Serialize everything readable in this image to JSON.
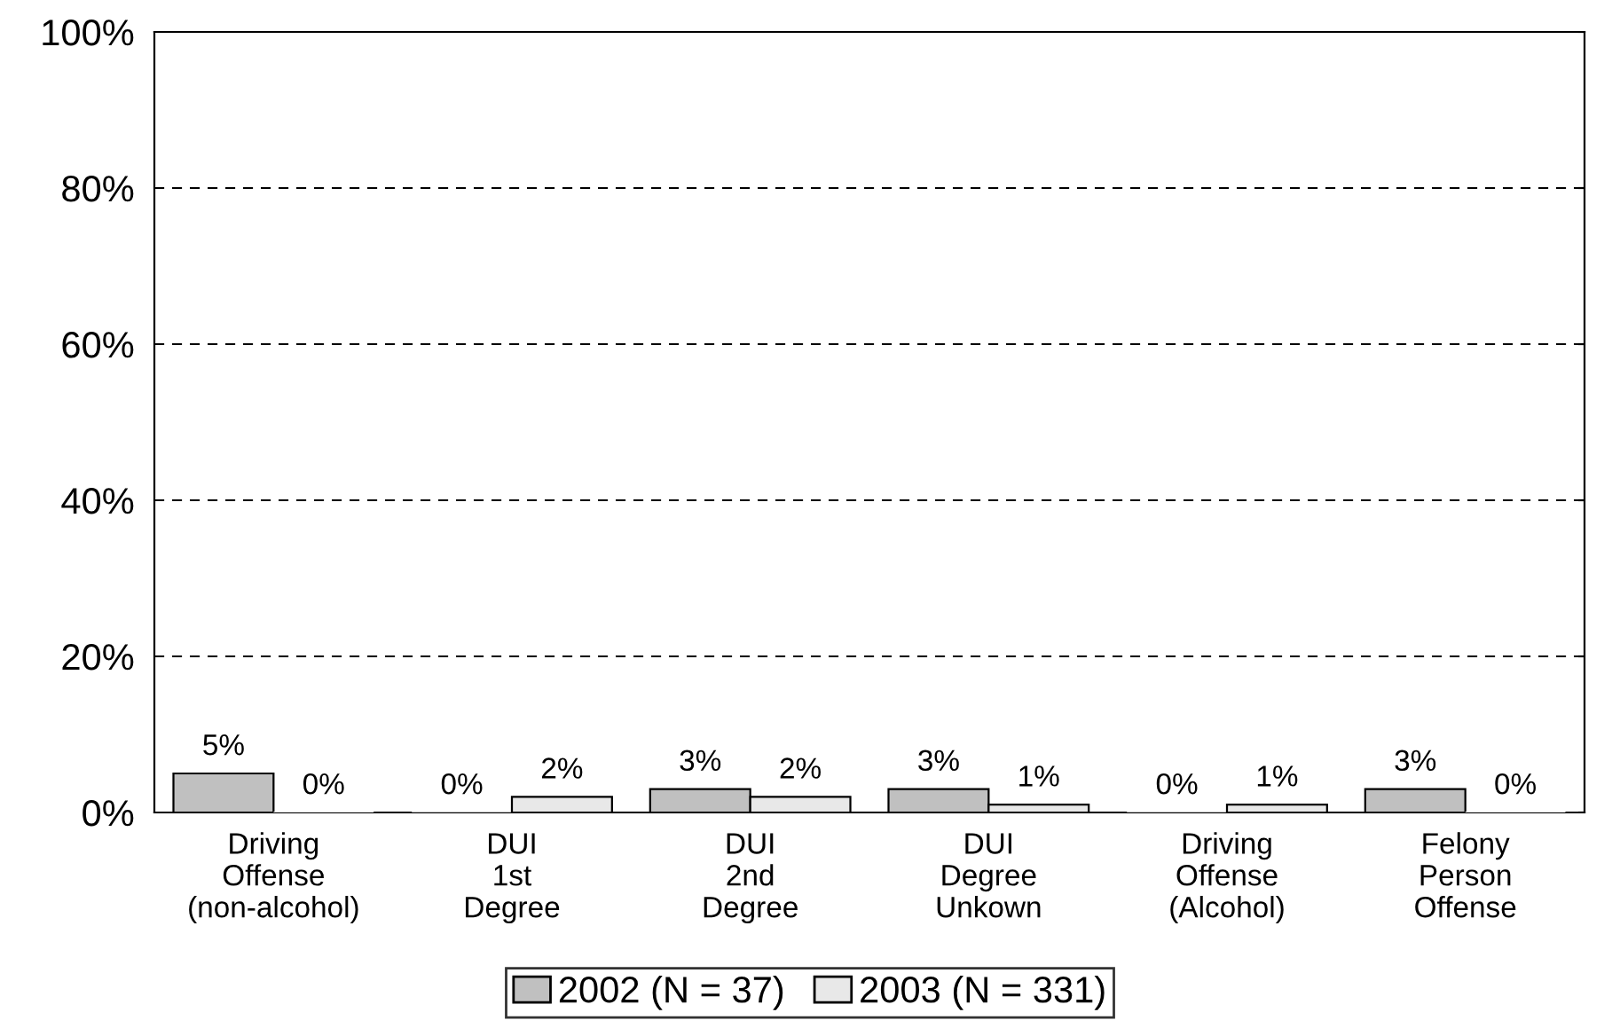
{
  "chart_data": {
    "type": "bar",
    "categories": [
      "Driving\nOffense\n(non-alcohol)",
      "DUI\n1st\nDegree",
      "DUI\n2nd\nDegree",
      "DUI\nDegree\nUnkown",
      "Driving\nOffense\n(Alcohol)",
      "Felony\nPerson\nOffense"
    ],
    "series": [
      {
        "name": "2002 (N = 37)",
        "color": "#c0c0c0",
        "values": [
          5,
          0,
          3,
          3,
          0,
          3
        ],
        "value_labels": [
          "5%",
          "0%",
          "3%",
          "3%",
          "0%",
          "3%"
        ]
      },
      {
        "name": "2003 (N = 331)",
        "color": "#e8e8e8",
        "values": [
          0,
          2,
          2,
          1,
          1,
          0
        ],
        "value_labels": [
          "0%",
          "2%",
          "2%",
          "1%",
          "1%",
          "0%"
        ]
      }
    ],
    "ylim": [
      0,
      100
    ],
    "yticks": [
      {
        "value": 0,
        "label": "0%"
      },
      {
        "value": 20,
        "label": "20%"
      },
      {
        "value": 40,
        "label": "40%"
      },
      {
        "value": 60,
        "label": "60%"
      },
      {
        "value": 80,
        "label": "80%"
      },
      {
        "value": 100,
        "label": "100%"
      }
    ],
    "grid": "y",
    "legend": "bottom"
  }
}
